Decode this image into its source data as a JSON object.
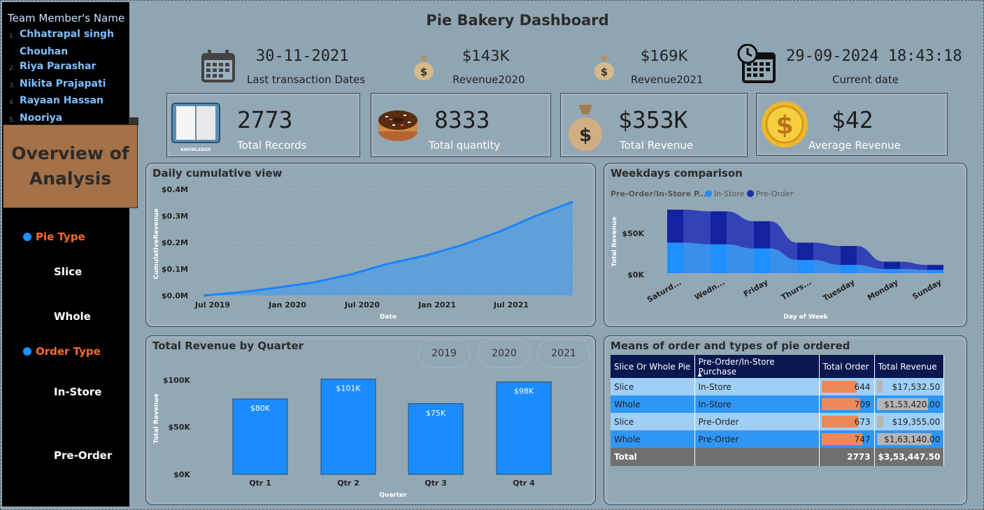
{
  "sidebar": {
    "team_title": "Team Member's Name",
    "members": [
      {
        "num": "1.",
        "name": "Chhatrapal singh"
      },
      {
        "num": "",
        "name": "Chouhan"
      },
      {
        "num": "2.",
        "name": "Riya Parashar"
      },
      {
        "num": "3.",
        "name": "Nikita Prajapati"
      },
      {
        "num": "4.",
        "name": "Rayaan Hassan"
      },
      {
        "num": "5.",
        "name": "Nooriya"
      }
    ],
    "overview_line1": "Overview of",
    "overview_line2": "Analysis",
    "pie_type_label": "Pie Type",
    "pie_type_options": [
      "Slice",
      "Whole"
    ],
    "order_type_label": "Order Type",
    "order_type_options": [
      "In-Store",
      "Pre-Order"
    ]
  },
  "header": {
    "title": "Pie Bakery Dashboard",
    "last_transaction_value": "30-11-2021",
    "last_transaction_label": "Last transaction Dates",
    "revenue2020_value": "$143K",
    "revenue2020_label": "Revenue2020",
    "revenue2021_value": "$169K",
    "revenue2021_label": "Revenue2021",
    "current_date_value": "29-09-2024 18:43:18",
    "current_date_label": "Current date"
  },
  "cards": {
    "records_value": "2773",
    "records_label": "Total Records",
    "knowledge_text": "KNOWLEDGE",
    "quantity_value": "8333",
    "quantity_label": "Total quantity",
    "revenue_value": "$353K",
    "revenue_label": "Total Revenue",
    "avg_value": "$42",
    "avg_label": "Average Revenue"
  },
  "daily_panel": {
    "title": "Daily cumulative view",
    "y_ticks": [
      "$0.4M",
      "$0.3M",
      "$0.2M",
      "$0.1M",
      "$0.0M"
    ],
    "x_ticks": [
      "Jul 2019",
      "Jan 2020",
      "Jul 2020",
      "Jan 2021",
      "Jul 2021"
    ],
    "xlabel": "Date",
    "ylabel": "CumulativeRevenue"
  },
  "weekday_panel": {
    "title": "Weekdays comparison",
    "legend_title": "Pre-Order/In-Store P...",
    "legend_instore": "In-Store",
    "legend_preorder": "Pre-Order",
    "y_ticks": [
      "$50K",
      "$0K"
    ],
    "days": [
      "Saturd...",
      "Wedn...",
      "Friday",
      "Thurs...",
      "Tuesday",
      "Monday",
      "Sunday"
    ],
    "xlabel": "Day of Week",
    "ylabel": "Total Revenue"
  },
  "quarter_panel": {
    "title": "Total Revenue by Quarter",
    "year_buttons": [
      "2019",
      "2020",
      "2021"
    ],
    "y_ticks": [
      "$100K",
      "$50K",
      "$0K"
    ],
    "xlabel": "Quarter",
    "ylabel": "Total Revenue"
  },
  "table_panel": {
    "title": "Means of order and types of pie ordered",
    "headers": [
      "Slice Or Whole Pie",
      "Pre-Order/In-Store Purchase",
      "Total Order",
      "Total Revenue"
    ],
    "sort_arrow": "▲",
    "rows": [
      {
        "pie": "Slice",
        "order": "In-Store",
        "total_order": "644",
        "total_revenue": "$17,532.50",
        "order_n": 644,
        "rev_n": 17532.5
      },
      {
        "pie": "Whole",
        "order": "In-Store",
        "total_order": "709",
        "total_revenue": "$1,53,420.00",
        "order_n": 709,
        "rev_n": 153420
      },
      {
        "pie": "Slice",
        "order": "Pre-Order",
        "total_order": "673",
        "total_revenue": "$19,355.00",
        "order_n": 673,
        "rev_n": 19355
      },
      {
        "pie": "Whole",
        "order": "Pre-Order",
        "total_order": "747",
        "total_revenue": "$1,63,140.00",
        "order_n": 747,
        "rev_n": 163140
      }
    ],
    "total_label": "Total",
    "total_order": "2773",
    "total_revenue": "$3,53,447.50"
  },
  "chart_data": [
    {
      "type": "area",
      "title": "Daily cumulative view",
      "xlabel": "Date",
      "ylabel": "CumulativeRevenue",
      "ylim": [
        0,
        0.4
      ],
      "y_unit": "$M",
      "x": [
        "2019-05",
        "2019-07",
        "2019-10",
        "2020-01",
        "2020-04",
        "2020-07",
        "2020-10",
        "2021-01",
        "2021-04",
        "2021-07",
        "2021-11"
      ],
      "values": [
        0.0,
        0.012,
        0.03,
        0.05,
        0.08,
        0.12,
        0.15,
        0.19,
        0.24,
        0.3,
        0.353
      ],
      "color": "#1e90ff"
    },
    {
      "type": "area",
      "title": "Weekdays comparison",
      "xlabel": "Day of Week",
      "ylabel": "Total Revenue",
      "categories": [
        "Saturday",
        "Wednesday",
        "Friday",
        "Thursday",
        "Tuesday",
        "Monday",
        "Sunday"
      ],
      "ylim": [
        0,
        80
      ],
      "y_unit": "$K",
      "series": [
        {
          "name": "In-Store",
          "values": [
            37,
            35,
            30,
            16,
            10,
            5,
            4
          ],
          "color": "#1e90ff"
        },
        {
          "name": "Pre-Order",
          "values": [
            40,
            40,
            33,
            21,
            23,
            9,
            6
          ],
          "color": "#1f2fae"
        }
      ]
    },
    {
      "type": "bar",
      "title": "Total Revenue by Quarter",
      "xlabel": "Quarter",
      "ylabel": "Total Revenue",
      "categories": [
        "Qtr 1",
        "Qtr 2",
        "Qtr 3",
        "Qtr 4"
      ],
      "values": [
        80,
        101,
        75,
        98
      ],
      "labels": [
        "$80K",
        "$101K",
        "$75K",
        "$98K"
      ],
      "ylim": [
        0,
        100
      ],
      "y_unit": "$K",
      "color": "#1a8cff"
    }
  ]
}
